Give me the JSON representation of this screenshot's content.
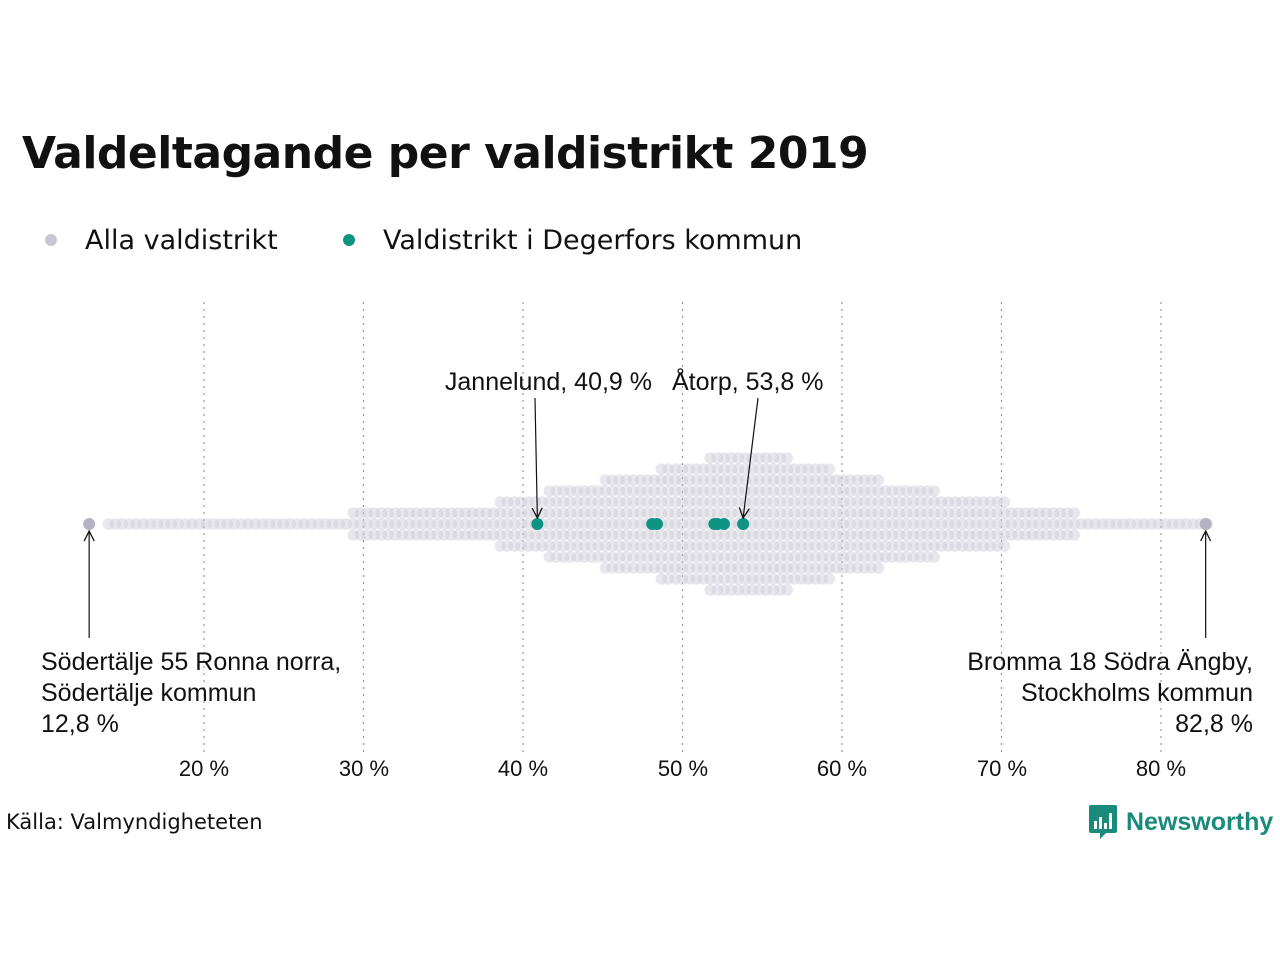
{
  "colors": {
    "all": "#c8c6d4",
    "highlight": "#0f9484",
    "brand": "#1a8a7a",
    "grid": "#9a9a9a"
  },
  "legend": {
    "all_label": "Alla valdistrikt",
    "highlight_label": "Valdistrikt i Degerfors kommun"
  },
  "source": "Källa: Valmyndigheteten",
  "brand": {
    "name": "Newsworthy",
    "icon": "newsworthy-logo-icon"
  },
  "chart_data": {
    "type": "scatter",
    "title": "Valdeltagande per valdistrikt 2019",
    "xlabel": "",
    "ylabel": "",
    "xlim": [
      12,
      84
    ],
    "x_ticks": [
      20,
      30,
      40,
      50,
      60,
      70,
      80
    ],
    "x_tick_labels": [
      "20 %",
      "30 %",
      "40 %",
      "50 %",
      "60 %",
      "70 %",
      "80 %"
    ],
    "grid": "vertical dotted",
    "legend_position": "top-left",
    "series": [
      {
        "name": "Alla valdistrikt",
        "distribution": "beeswarm",
        "density": [
          [
            14.0,
            0
          ],
          [
            15.3,
            1
          ],
          [
            16.6,
            1
          ],
          [
            17.9,
            2
          ],
          [
            19.0,
            3
          ],
          [
            20.0,
            5
          ],
          [
            22.0,
            6
          ],
          [
            24.0,
            7
          ],
          [
            26.0,
            9
          ],
          [
            28.0,
            10
          ],
          [
            30.0,
            11
          ],
          [
            32.0,
            12
          ],
          [
            34.0,
            14
          ],
          [
            36.0,
            16
          ],
          [
            38.0,
            20
          ],
          [
            40.0,
            27
          ],
          [
            42.0,
            35
          ],
          [
            44.0,
            41
          ],
          [
            46.0,
            46
          ],
          [
            48.0,
            52
          ],
          [
            50.0,
            60
          ],
          [
            51.5,
            65
          ],
          [
            53.0,
            72
          ],
          [
            54.0,
            76
          ],
          [
            55.0,
            73
          ],
          [
            56.0,
            68
          ],
          [
            58.0,
            60
          ],
          [
            60.0,
            52
          ],
          [
            62.0,
            45
          ],
          [
            64.0,
            38
          ],
          [
            66.0,
            32
          ],
          [
            68.0,
            27
          ],
          [
            70.0,
            22
          ],
          [
            72.0,
            17
          ],
          [
            74.0,
            12
          ],
          [
            76.0,
            7
          ],
          [
            77.5,
            4
          ],
          [
            79.0,
            2
          ],
          [
            80.5,
            1
          ],
          [
            82.0,
            1
          ],
          [
            83.0,
            0
          ]
        ],
        "extremes": [
          12.8,
          82.8
        ]
      },
      {
        "name": "Valdistrikt i Degerfors kommun",
        "x": [
          40.9,
          48.1,
          48.4,
          52.0,
          52.2,
          52.6,
          53.8
        ]
      }
    ],
    "annotations": [
      {
        "lines": [
          "Jannelund, 40,9 %"
        ],
        "x": 40.9
      },
      {
        "lines": [
          "Åtorp, 53,8 %"
        ],
        "x": 53.8
      },
      {
        "lines": [
          "Södertälje 55 Ronna norra,",
          "Södertälje kommun",
          "12,8 %"
        ],
        "x": 12.8
      },
      {
        "lines": [
          "Bromma 18 Södra Ängby,",
          "Stockholms kommun",
          "82,8 %"
        ],
        "x": 82.8
      }
    ]
  }
}
